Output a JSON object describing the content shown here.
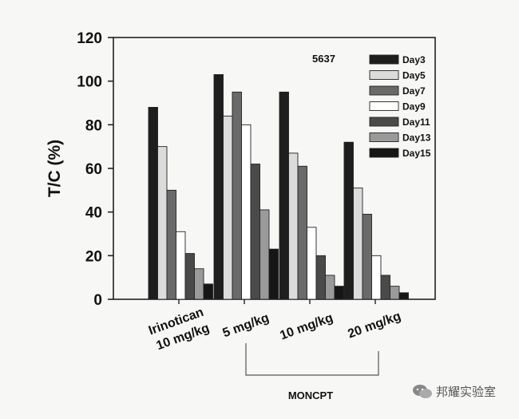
{
  "chart_data": {
    "type": "bar",
    "title": "",
    "ylabel": "T/C (%)",
    "xlabel": "",
    "ylim": [
      0,
      120
    ],
    "yticks": [
      0,
      20,
      40,
      60,
      80,
      100,
      120
    ],
    "grid": false,
    "legend_position": "top-right",
    "annotation": "5637",
    "categories": [
      "Irinotican\n10 mg/kg",
      "5 mg/kg",
      "10 mg/kg",
      "20 mg/kg"
    ],
    "group_label": "MONCPT",
    "series": [
      {
        "name": "Day3",
        "color": "#1e1e1e",
        "values": [
          88,
          103,
          95,
          72
        ]
      },
      {
        "name": "Day5",
        "color": "#dcdcdc",
        "values": [
          70,
          84,
          67,
          51
        ]
      },
      {
        "name": "Day7",
        "color": "#6a6a6a",
        "values": [
          50,
          95,
          61,
          39
        ]
      },
      {
        "name": "Day9",
        "color": "#ffffff",
        "values": [
          31,
          80,
          33,
          20
        ]
      },
      {
        "name": "Day11",
        "color": "#4a4a4a",
        "values": [
          21,
          62,
          20,
          11
        ]
      },
      {
        "name": "Day13",
        "color": "#9a9a9a",
        "values": [
          14,
          41,
          11,
          6
        ]
      },
      {
        "name": "Day15",
        "color": "#161616",
        "values": [
          7,
          23,
          6,
          3
        ]
      }
    ]
  },
  "watermark": {
    "text": "邦耀实验室",
    "icon": "wechat-icon"
  }
}
